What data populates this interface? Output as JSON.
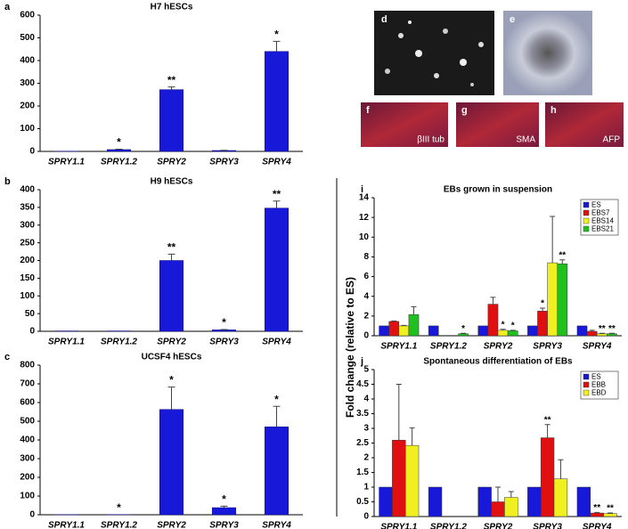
{
  "shared_ylabel": "Fold change (relative to ES)",
  "images": [
    {
      "panel": "d"
    },
    {
      "panel": "e"
    },
    {
      "panel": "f",
      "caption": "βIII tub"
    },
    {
      "panel": "g",
      "caption": "SMA"
    },
    {
      "panel": "h",
      "caption": "AFP"
    }
  ],
  "chart_data": [
    {
      "type": "bar",
      "panel": "a",
      "title": "H7 hESCs",
      "color": "#1818d8",
      "categories": [
        "SPRY1.1",
        "SPRY1.2",
        "SPRY2",
        "SPRY3",
        "SPRY4"
      ],
      "values": [
        1,
        8,
        272,
        4,
        440
      ],
      "errors": [
        0,
        2,
        12,
        1,
        45
      ],
      "annotations": [
        null,
        "*",
        "**",
        null,
        "*"
      ],
      "ylim": [
        0,
        600
      ],
      "yticks": [
        0,
        100,
        200,
        300,
        400,
        500,
        600
      ]
    },
    {
      "type": "bar",
      "panel": "b",
      "title": "H9 hESCs",
      "color": "#1818d8",
      "categories": [
        "SPRY1.1",
        "SPRY1.2",
        "SPRY2",
        "SPRY3",
        "SPRY4"
      ],
      "values": [
        1,
        1,
        200,
        4,
        348
      ],
      "errors": [
        0,
        0,
        18,
        1,
        20
      ],
      "annotations": [
        null,
        null,
        "**",
        "*",
        "**"
      ],
      "ylim": [
        0,
        400
      ],
      "yticks": [
        0,
        50,
        100,
        150,
        200,
        250,
        300,
        350,
        400
      ]
    },
    {
      "type": "bar",
      "panel": "c",
      "title": "UCSF4 hESCs",
      "color": "#1818d8",
      "categories": [
        "SPRY1.1",
        "SPRY1.2",
        "SPRY2",
        "SPRY3",
        "SPRY4"
      ],
      "values": [
        1,
        1,
        563,
        38,
        470
      ],
      "errors": [
        0,
        0,
        120,
        8,
        110
      ],
      "annotations": [
        null,
        "*",
        "*",
        "*",
        "*"
      ],
      "ylim": [
        0,
        800
      ],
      "yticks": [
        0,
        100,
        200,
        300,
        400,
        500,
        600,
        700,
        800
      ]
    },
    {
      "type": "grouped_bar",
      "panel": "i",
      "title": "EBs grown in suspension",
      "legend": "upper right",
      "categories": [
        "SPRY1.1",
        "SPRY1.2",
        "SPRY2",
        "SPRY3",
        "SPRY4"
      ],
      "series": [
        {
          "name": "ES",
          "color": "#1818d8",
          "values": [
            1,
            1,
            1,
            1,
            1
          ],
          "errors": [
            0,
            0,
            0,
            0,
            0
          ],
          "annotations": [
            null,
            null,
            null,
            null,
            null
          ]
        },
        {
          "name": "EBS7",
          "color": "#e01010",
          "values": [
            1.45,
            0,
            3.2,
            2.5,
            0.45
          ],
          "errors": [
            0.05,
            0,
            0.7,
            0.3,
            0.1
          ],
          "annotations": [
            null,
            null,
            null,
            "*",
            null
          ]
        },
        {
          "name": "EBS14",
          "color": "#f0f020",
          "values": [
            1.0,
            0,
            0.55,
            7.4,
            0.2
          ],
          "errors": [
            0.05,
            0,
            0.1,
            4.7,
            0.05
          ],
          "annotations": [
            null,
            null,
            "*",
            null,
            "**"
          ]
        },
        {
          "name": "EBS21",
          "color": "#20c020",
          "values": [
            2.15,
            0.2,
            0.5,
            7.3,
            0.2
          ],
          "errors": [
            0.8,
            0.05,
            0.05,
            0.4,
            0.05
          ],
          "annotations": [
            null,
            "*",
            "*",
            "**",
            "**"
          ]
        }
      ],
      "ylim": [
        0,
        14
      ],
      "yticks": [
        0,
        2,
        4,
        6,
        8,
        10,
        12,
        14
      ]
    },
    {
      "type": "grouped_bar",
      "panel": "j",
      "title": "Spontaneous differentiation of EBs",
      "legend": "upper right",
      "categories": [
        "SPRY1.1",
        "SPRY1.2",
        "SPRY2",
        "SPRY3",
        "SPRY4"
      ],
      "series": [
        {
          "name": "ES",
          "color": "#1818d8",
          "values": [
            1,
            1,
            1,
            1,
            1
          ],
          "errors": [
            0,
            0,
            0,
            0,
            0
          ],
          "annotations": [
            null,
            null,
            null,
            null,
            null
          ]
        },
        {
          "name": "EBB",
          "color": "#e01010",
          "values": [
            2.6,
            0,
            0.5,
            2.68,
            0.12
          ],
          "errors": [
            1.9,
            0,
            0.5,
            0.45,
            0.02
          ],
          "annotations": [
            null,
            null,
            null,
            "**",
            "**"
          ]
        },
        {
          "name": "EBD",
          "color": "#f0f020",
          "values": [
            2.42,
            0,
            0.65,
            1.28,
            0.1
          ],
          "errors": [
            0.6,
            0,
            0.2,
            0.65,
            0.02
          ],
          "annotations": [
            null,
            null,
            null,
            null,
            "**"
          ]
        }
      ],
      "ylim": [
        0,
        5
      ],
      "yticks": [
        0,
        0.5,
        1,
        1.5,
        2,
        2.5,
        3,
        3.5,
        4,
        4.5,
        5
      ]
    }
  ]
}
